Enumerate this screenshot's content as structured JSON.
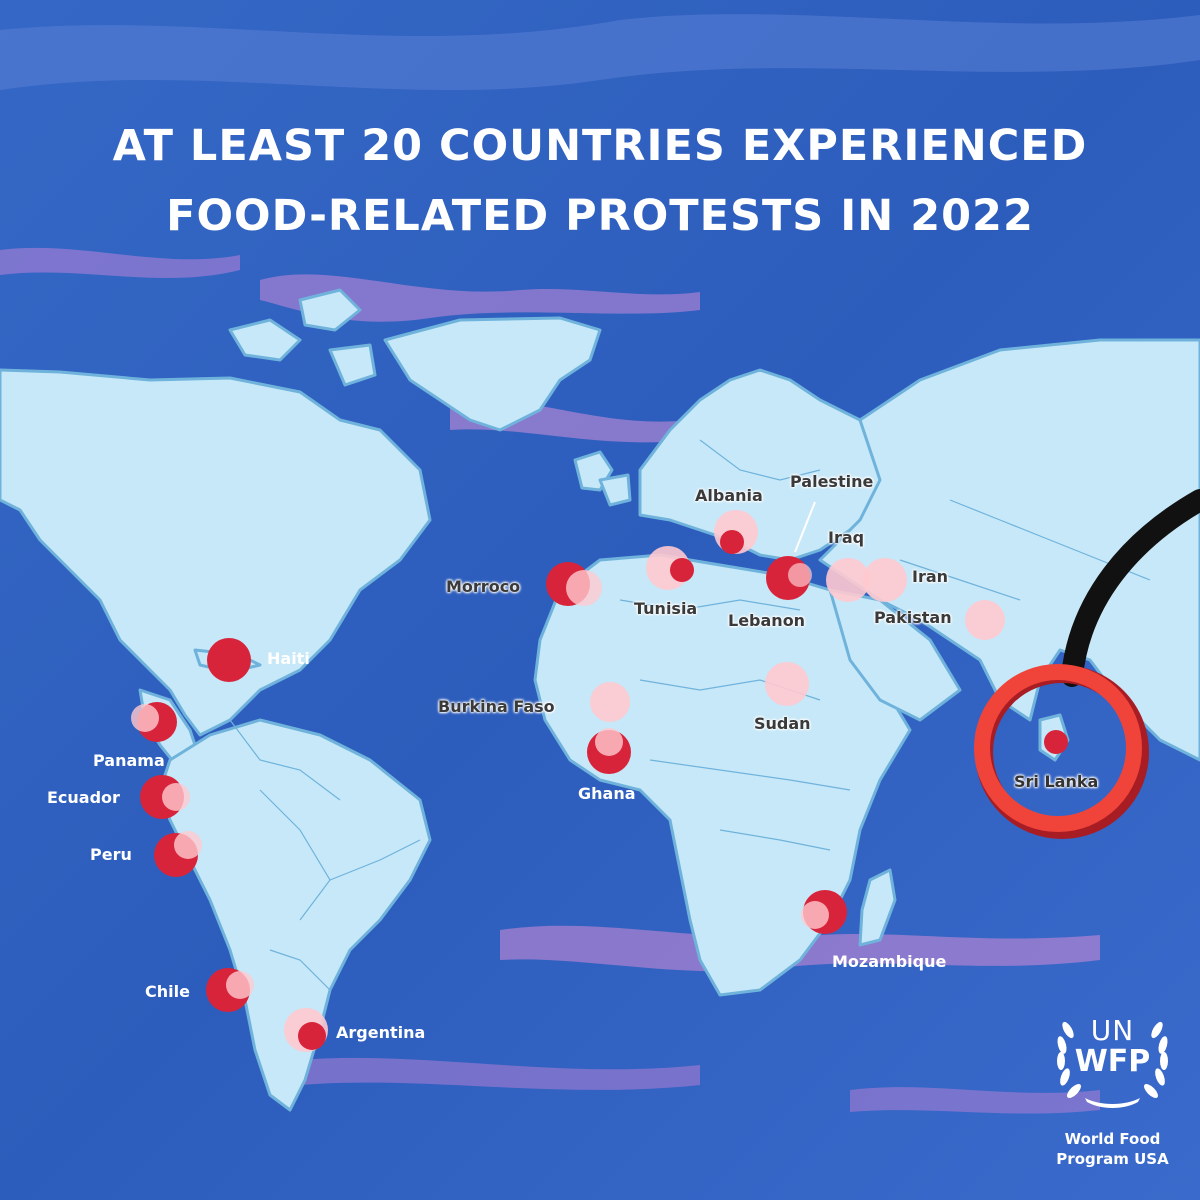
{
  "title": {
    "line1": "AT LEAST 20 COUNTRIES EXPERIENCED",
    "line2": "FOOD-RELATED PROTESTS IN 2022"
  },
  "countries": [
    {
      "name": "Albania"
    },
    {
      "name": "Palestine"
    },
    {
      "name": "Iraq"
    },
    {
      "name": "Iran"
    },
    {
      "name": "Morroco"
    },
    {
      "name": "Tunisia"
    },
    {
      "name": "Lebanon"
    },
    {
      "name": "Pakistan"
    },
    {
      "name": "Haiti"
    },
    {
      "name": "Burkina Faso"
    },
    {
      "name": "Sudan"
    },
    {
      "name": "Panama"
    },
    {
      "name": "Ecuador"
    },
    {
      "name": "Ghana"
    },
    {
      "name": "Peru"
    },
    {
      "name": "Chile"
    },
    {
      "name": "Argentina"
    },
    {
      "name": "Mozambique"
    },
    {
      "name": "Sri Lanka"
    }
  ],
  "logo": {
    "un": "UN",
    "wfp": "WFP",
    "line1": "World Food",
    "line2": "Program USA"
  },
  "colors": {
    "ocean": "#2f5fc0",
    "land": "#c7e8f8",
    "border": "#6fb3dc",
    "marker_strong": "#d8243a",
    "marker_light": "#ffc9cf",
    "highlight_ring": "#f0443a"
  }
}
